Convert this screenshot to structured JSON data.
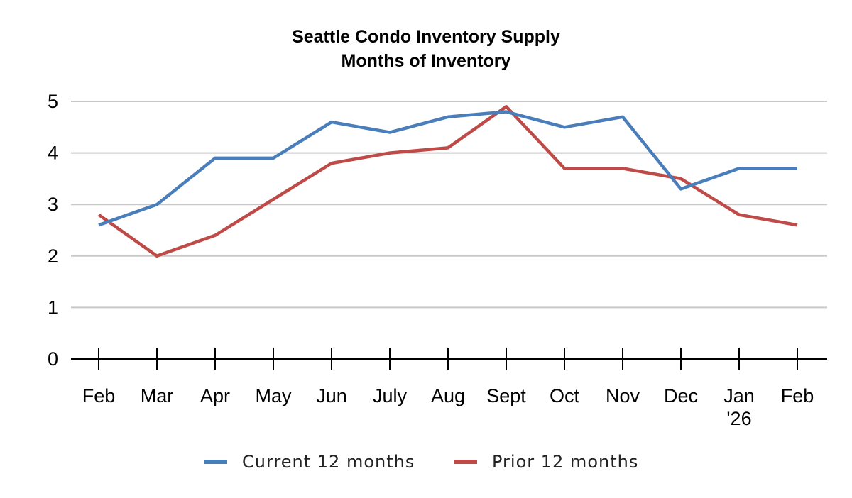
{
  "chart_data": {
    "type": "line",
    "title": "Seattle Condo Inventory Supply",
    "subtitle": "Months of Inventory",
    "xlabel": "",
    "ylabel": "",
    "categories": [
      [
        "Feb"
      ],
      [
        "Mar"
      ],
      [
        "Apr"
      ],
      [
        "May"
      ],
      [
        "Jun"
      ],
      [
        "July"
      ],
      [
        "Aug"
      ],
      [
        "Sept"
      ],
      [
        "Oct"
      ],
      [
        "Nov"
      ],
      [
        "Dec"
      ],
      [
        "Jan",
        "'26"
      ],
      [
        "Feb"
      ]
    ],
    "ylim": [
      0,
      5
    ],
    "yticks": [
      "0",
      "1",
      "2",
      "3",
      "4",
      "5"
    ],
    "grid": true,
    "legend_position": "bottom",
    "series": [
      {
        "name": "Current 12 months",
        "color": "#4a7ebb",
        "values": [
          2.6,
          3.0,
          3.9,
          3.9,
          4.6,
          4.4,
          4.7,
          4.8,
          4.5,
          4.7,
          3.3,
          3.7,
          3.7
        ]
      },
      {
        "name": "Prior 12 months",
        "color": "#be4b48",
        "values": [
          2.8,
          2.0,
          2.4,
          3.1,
          3.8,
          4.0,
          4.1,
          4.9,
          3.7,
          3.7,
          3.5,
          2.8,
          2.6
        ]
      }
    ]
  }
}
